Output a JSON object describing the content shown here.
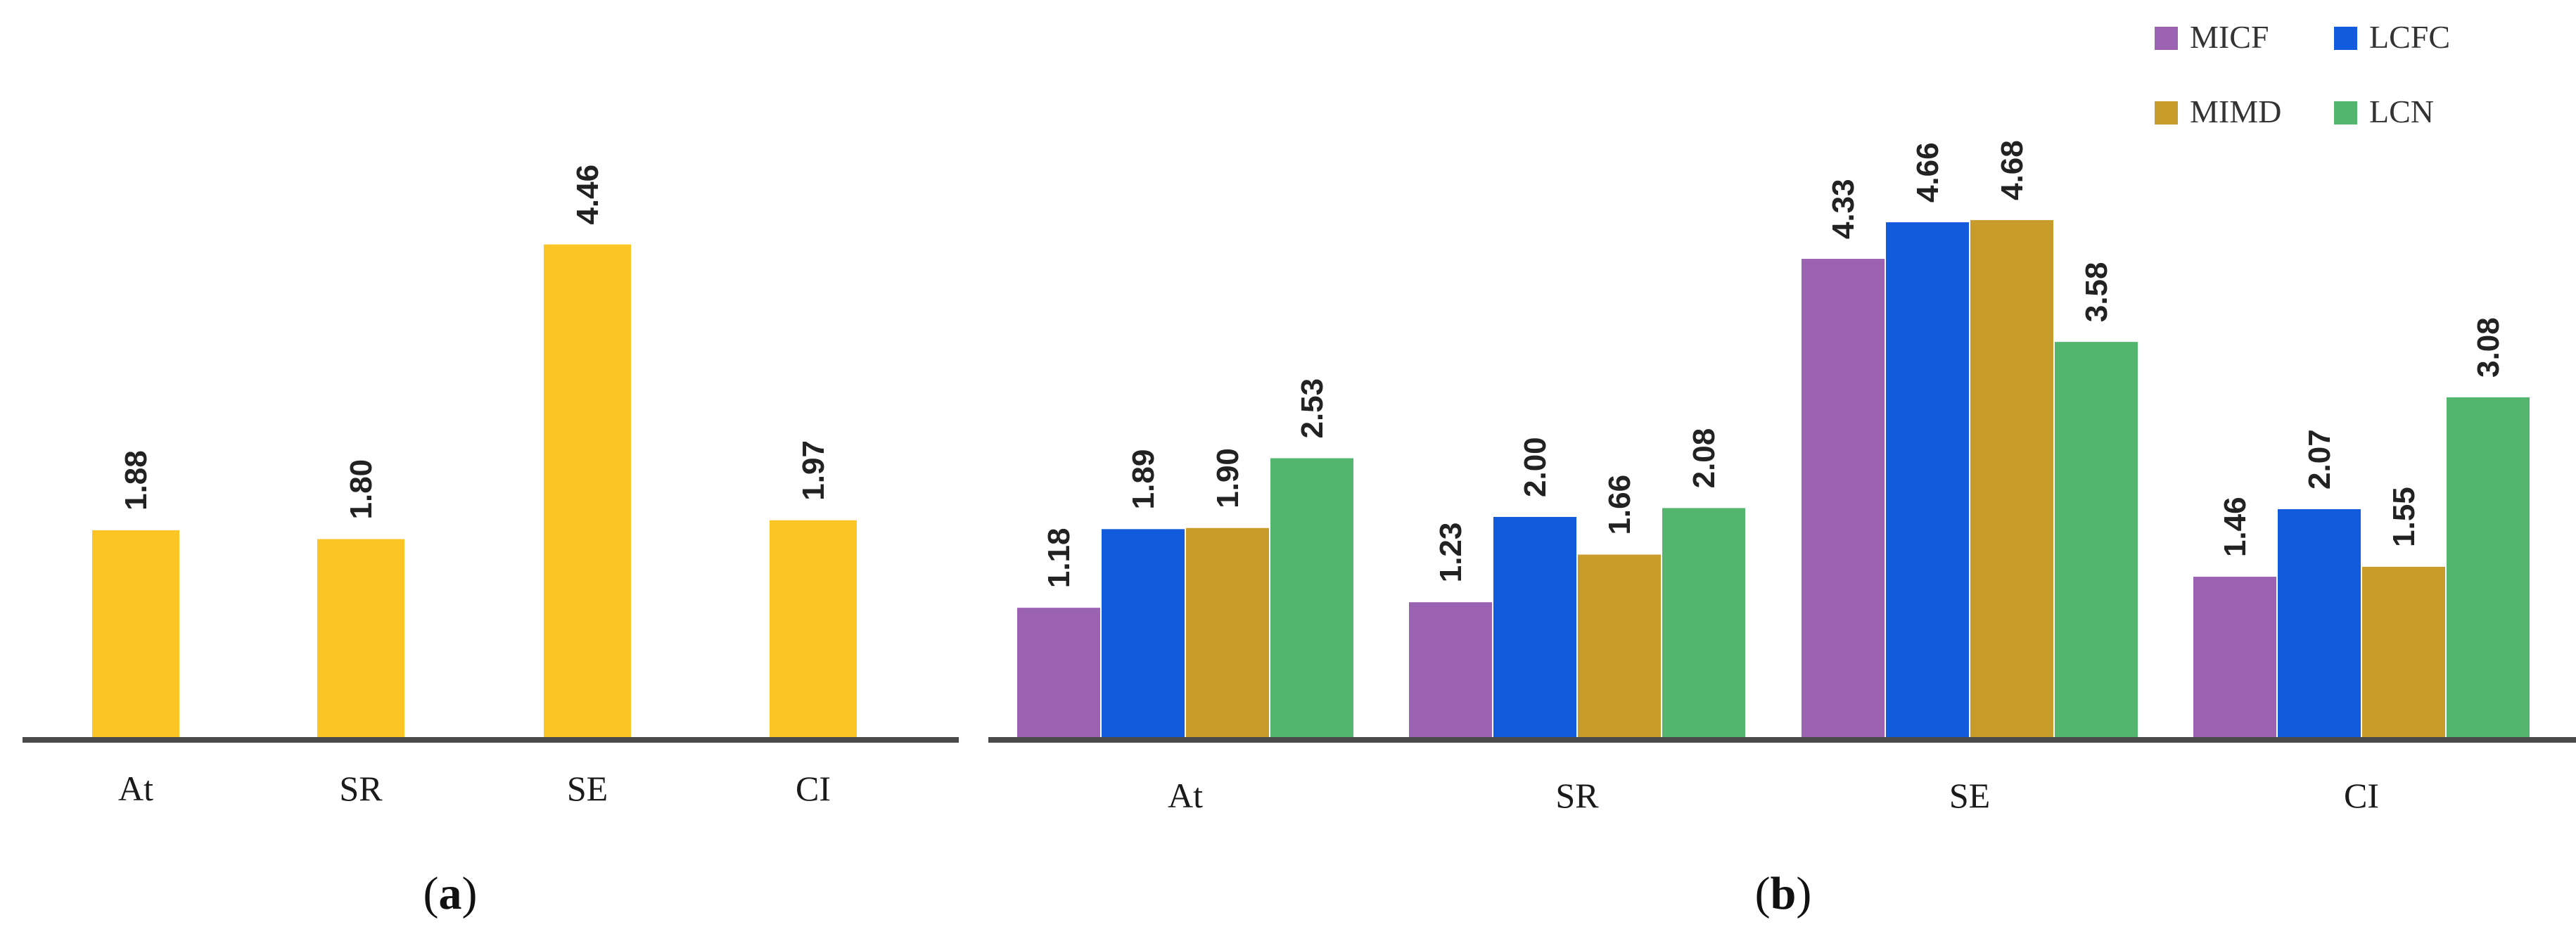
{
  "chart_data": [
    {
      "panel": "(a)",
      "panel_letter": "a",
      "type": "bar",
      "categories": [
        "At",
        "SR",
        "SE",
        "CI"
      ],
      "values": [
        1.88,
        1.8,
        4.46,
        1.97
      ],
      "value_labels": [
        "1.88",
        "1.80",
        "4.46",
        "1.97"
      ],
      "color": "#FCC526",
      "ylim": [
        0,
        5.2
      ]
    },
    {
      "panel": "(b)",
      "panel_letter": "b",
      "type": "bar",
      "categories": [
        "At",
        "SR",
        "SE",
        "CI"
      ],
      "series": [
        {
          "name": "MICF",
          "color": "#9C62B2",
          "values": [
            1.18,
            1.23,
            4.33,
            1.46
          ],
          "labels": [
            "1.18",
            "1.23",
            "4.33",
            "1.46"
          ]
        },
        {
          "name": "LCFC",
          "color": "#135BDD",
          "values": [
            1.89,
            2.0,
            4.66,
            2.07
          ],
          "labels": [
            "1.89",
            "2.00",
            "4.66",
            "2.07"
          ]
        },
        {
          "name": "MIMD",
          "color": "#C79C2A",
          "values": [
            1.9,
            1.66,
            4.68,
            1.55
          ],
          "labels": [
            "1.90",
            "1.66",
            "4.68",
            "1.55"
          ]
        },
        {
          "name": "LCN",
          "color": "#53B56E",
          "values": [
            2.53,
            2.08,
            3.58,
            3.08
          ],
          "labels": [
            "2.53",
            "2.08",
            "3.58",
            "3.08"
          ]
        }
      ],
      "legend": "top-right",
      "ylim": [
        0,
        5.2
      ]
    }
  ]
}
